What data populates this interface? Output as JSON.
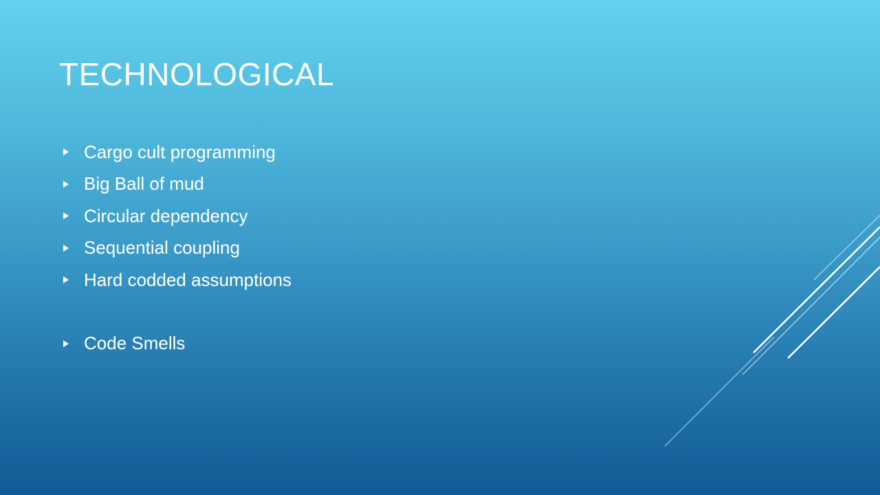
{
  "slide": {
    "title": "TECHNOLOGICAL",
    "bullets": [
      "Cargo cult programming",
      "Big Ball of mud",
      "Circular dependency",
      "Sequential coupling",
      "Hard codded assumptions",
      "Code Smells"
    ]
  },
  "colors": {
    "gradient_top": "#62d2ee",
    "gradient_bottom": "#105b95",
    "text": "#ffffff"
  },
  "icons": {
    "bullet": "triangle-right-icon"
  }
}
